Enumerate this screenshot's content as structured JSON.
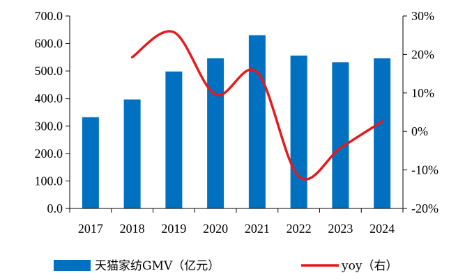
{
  "chart_data": {
    "type": "bar",
    "categories": [
      "2017",
      "2018",
      "2019",
      "2020",
      "2021",
      "2022",
      "2023",
      "2024"
    ],
    "series": [
      {
        "name": "天猫家纺GMV（亿元）",
        "type": "bar",
        "axis": "left",
        "color": "#0070c0",
        "values": [
          332,
          396,
          498,
          546,
          630,
          556,
          532,
          546
        ]
      },
      {
        "name": "yoy（右）",
        "type": "line",
        "axis": "right",
        "color": "#e41a1c",
        "values": [
          null,
          19.3,
          25.8,
          9.6,
          15.4,
          -11.7,
          -4.3,
          2.6
        ]
      }
    ],
    "y_left": {
      "min": 0,
      "max": 700,
      "ticks": [
        0,
        100,
        200,
        300,
        400,
        500,
        600,
        700
      ],
      "tick_labels": [
        "0.0",
        "100.0",
        "200.0",
        "300.0",
        "400.0",
        "500.0",
        "600.0",
        "700.0"
      ]
    },
    "y_right": {
      "min": -20,
      "max": 30,
      "ticks": [
        -20,
        -10,
        0,
        10,
        20,
        30
      ],
      "tick_labels": [
        "-20%",
        "-10%",
        "0%",
        "10%",
        "20%",
        "30%"
      ]
    },
    "title": "",
    "xlabel": "",
    "ylabel": "",
    "grid": false,
    "legend_position": "bottom"
  }
}
